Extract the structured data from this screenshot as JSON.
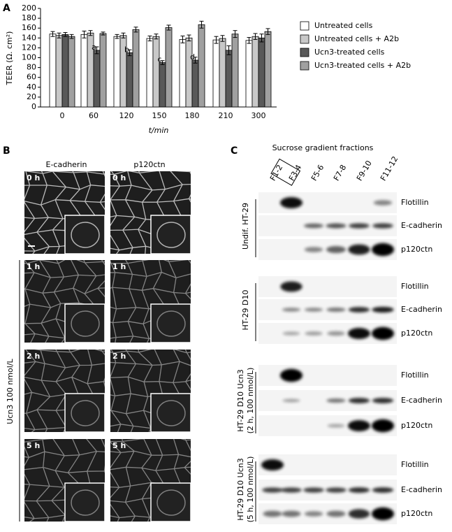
{
  "panel_labels": [
    "A",
    "B",
    "C"
  ],
  "chart_data": {
    "type": "bar",
    "ylabel": "TEER (Ω. cm²)",
    "xlabel": "t/min",
    "categories": [
      "0",
      "60",
      "120",
      "150",
      "180",
      "210",
      "300"
    ],
    "series": [
      {
        "name": "Untreated cells",
        "color": "#ffffff",
        "values": [
          148,
          147,
          143,
          139,
          137,
          136,
          135
        ],
        "errors": [
          5,
          7,
          4,
          5,
          7,
          7,
          6
        ]
      },
      {
        "name": "Untreated cells + A2b",
        "color": "#c8c8c8",
        "values": [
          145,
          150,
          145,
          143,
          140,
          139,
          143
        ],
        "errors": [
          5,
          5,
          5,
          5,
          6,
          6,
          6
        ]
      },
      {
        "name": "Ucn3-treated cells",
        "color": "#595959",
        "values": [
          147,
          115,
          110,
          90,
          95,
          115,
          140
        ],
        "errors": [
          4,
          7,
          6,
          4,
          6,
          9,
          8
        ],
        "letters": [
          null,
          "a",
          "b",
          "c",
          "d",
          null,
          null
        ]
      },
      {
        "name": "Ucn3-treated cells + A2b",
        "color": "#a0a0a0",
        "values": [
          143,
          149,
          157,
          161,
          167,
          148,
          153
        ],
        "errors": [
          4,
          3,
          5,
          5,
          7,
          7,
          6
        ]
      }
    ],
    "ylim": [
      0,
      200
    ],
    "yticks": [
      0,
      20,
      40,
      60,
      80,
      100,
      120,
      140,
      160,
      180,
      200
    ],
    "grid": false,
    "legend": "right"
  },
  "panel_b": {
    "columns": [
      "E-cadherin",
      "p120ctn"
    ],
    "times": [
      "0 h",
      "1 h",
      "2 h",
      "5 h"
    ],
    "treatment": "Ucn3 100 nmol/L"
  },
  "panel_c": {
    "title": "Sucrose gradient fractions",
    "fractions": [
      "F1-2",
      "F3-4",
      "F5-6",
      "F7-8",
      "F9-10",
      "F11-12"
    ],
    "proteins": [
      "Flotillin",
      "E-cadherin",
      "p120ctn"
    ],
    "groups": [
      {
        "label": [
          "Undif. HT-29"
        ]
      },
      {
        "label": [
          "HT-29 D10"
        ]
      },
      {
        "label": [
          "HT-29 D10 Ucn3",
          "(2 h, 100 nmol/L)"
        ]
      },
      {
        "label": [
          "HT-29 D10 Ucn3",
          "(5 h, 100 nmol/L)"
        ]
      }
    ]
  }
}
